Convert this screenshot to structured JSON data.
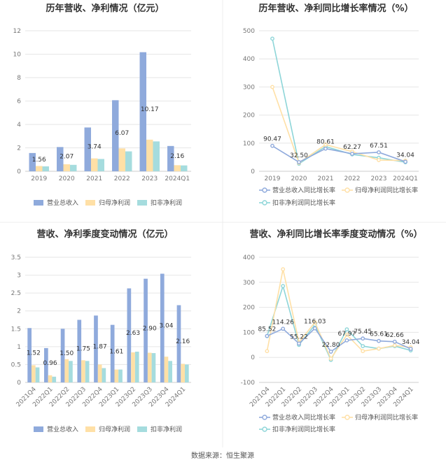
{
  "colors": {
    "revenue": "#8faadc",
    "net_profit": "#ffe0a6",
    "deducted_profit": "#a5dcde",
    "line_revenue": "#8faadc",
    "line_net": "#ffe0a6",
    "line_deducted": "#8dd5d8"
  },
  "chart_data": [
    {
      "type": "bar",
      "title": "历年营收、净利情况（亿元）",
      "categories": [
        "2019",
        "2020",
        "2021",
        "2022",
        "2023",
        "2024Q1"
      ],
      "ylim": [
        0,
        12
      ],
      "yticks": [
        "0",
        "2",
        "4",
        "6",
        "8",
        "10",
        "12"
      ],
      "series": [
        {
          "name": "营业总收入",
          "values": [
            1.56,
            2.07,
            3.74,
            6.07,
            10.17,
            2.16
          ],
          "labels": [
            "1.56",
            "2.07",
            "3.74",
            "6.07",
            "10.17",
            "2.16"
          ]
        },
        {
          "name": "归母净利润",
          "values": [
            0.45,
            0.6,
            1.1,
            1.95,
            2.7,
            0.52
          ]
        },
        {
          "name": "扣非净利润",
          "values": [
            0.42,
            0.55,
            1.05,
            1.7,
            2.55,
            0.5
          ]
        }
      ],
      "legend": "bottom",
      "grid": true
    },
    {
      "type": "line",
      "title": "历年营收、净利同比增长率情况（%）",
      "categories": [
        "2019",
        "2020",
        "2021",
        "2022",
        "2023",
        "2024Q1"
      ],
      "ylim": [
        0,
        500
      ],
      "yticks": [
        "0",
        "100",
        "200",
        "300",
        "400",
        "500"
      ],
      "series": [
        {
          "name": "营业总收入同比增长率",
          "values": [
            90.47,
            32.5,
            80.61,
            62.27,
            67.51,
            34.04
          ],
          "labels": [
            "90.47",
            "32.50",
            "80.61",
            "62.27",
            "67.51",
            "34.04"
          ]
        },
        {
          "name": "归母净利润同比增长率",
          "values": [
            300,
            30,
            95,
            70,
            40,
            38
          ]
        },
        {
          "name": "扣非净利润同比增长率",
          "values": [
            472,
            27,
            88,
            60,
            48,
            32
          ]
        }
      ],
      "legend": "bottom",
      "grid": true
    },
    {
      "type": "bar",
      "title": "营收、净利季度变动情况（亿元）",
      "categories": [
        "2021Q4",
        "2022Q1",
        "2022Q2",
        "2022Q3",
        "2022Q4",
        "2023Q1",
        "2023Q2",
        "2023Q3",
        "2023Q4",
        "2024Q1"
      ],
      "ylim": [
        0,
        3.5
      ],
      "yticks": [
        "0",
        "0.5",
        "1",
        "1.5",
        "2",
        "2.5",
        "3",
        "3.5"
      ],
      "series": [
        {
          "name": "营业总收入",
          "values": [
            1.52,
            0.96,
            1.5,
            1.75,
            1.87,
            1.61,
            2.63,
            2.9,
            3.04,
            2.16
          ],
          "labels": [
            "1.52",
            "0.96",
            "1.50",
            "1.75",
            "1.87",
            "1.61",
            "2.63",
            "2.90",
            "3.04",
            "2.16"
          ]
        },
        {
          "name": "归母净利润",
          "values": [
            0.48,
            0.2,
            0.65,
            0.62,
            0.5,
            0.36,
            0.84,
            0.83,
            0.72,
            0.52
          ]
        },
        {
          "name": "扣非净利润",
          "values": [
            0.42,
            0.16,
            0.6,
            0.6,
            0.4,
            0.36,
            0.86,
            0.82,
            0.6,
            0.5
          ]
        }
      ],
      "legend": "bottom",
      "grid": true
    },
    {
      "type": "line",
      "title": "营收、净利同比增长率季度变动情况（%）",
      "categories": [
        "2021Q4",
        "2022Q1",
        "2022Q2",
        "2022Q3",
        "2022Q4",
        "2023Q1",
        "2023Q2",
        "2023Q3",
        "2023Q4",
        "2024Q1"
      ],
      "ylim": [
        -100,
        400
      ],
      "yticks": [
        "-100",
        "0",
        "100",
        "200",
        "300",
        "400"
      ],
      "series": [
        {
          "name": "营业总收入同比增长率",
          "values": [
            85.52,
            114.26,
            55.22,
            116.03,
            22.8,
            67.97,
            75.45,
            65.61,
            62.66,
            34.04
          ],
          "labels": [
            "85.52",
            "114.26",
            "55.22",
            "116.03",
            "22.80",
            "67.97",
            "75.45",
            "65.61",
            "62.66",
            "34.04"
          ]
        },
        {
          "name": "归母净利润同比增长率",
          "values": [
            25,
            352,
            60,
            140,
            -5,
            90,
            25,
            35,
            48,
            40
          ]
        },
        {
          "name": "扣非净利润同比增长率",
          "values": [
            85,
            285,
            50,
            130,
            -10,
            112,
            45,
            35,
            45,
            28
          ]
        }
      ],
      "legend": "bottom",
      "grid": true
    }
  ],
  "footer": {
    "source": "数据来源：恒生聚源"
  }
}
